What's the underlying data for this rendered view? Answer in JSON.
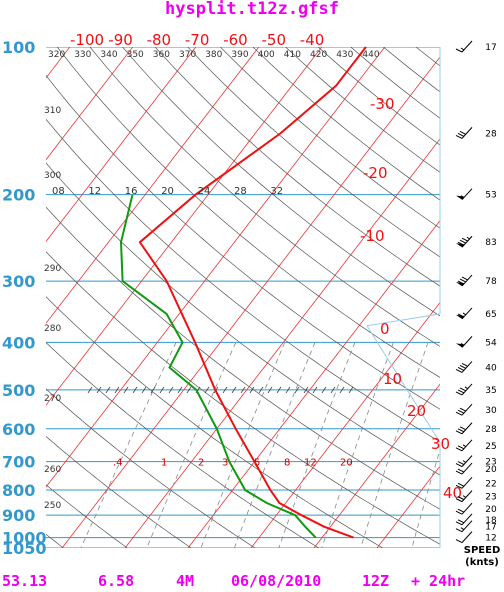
{
  "title": "hysplit.t12z.gfsf",
  "footer": {
    "lat": "53.13",
    "lon": "6.58",
    "model": "4M",
    "date": "06/08/2010",
    "cycle": "12Z",
    "forecast": "+ 24hr"
  },
  "colors": {
    "temperature": "#ee1111",
    "dewpoint": "#119911",
    "isobar": "#3399cc",
    "title": "#ee00ee",
    "isotherm": "#ee3333",
    "dry_adiabat": "#555555",
    "mixing_ratio": "#888888"
  },
  "chart_data": {
    "type": "skew-t",
    "pressure_levels": [
      100,
      200,
      300,
      400,
      500,
      600,
      700,
      800,
      900,
      1000,
      1050
    ],
    "top_temperature_labels": [
      -100,
      -90,
      -80,
      -70,
      -60,
      -50,
      -40
    ],
    "right_temperature_labels": [
      -30,
      -20,
      -10,
      0,
      10,
      20,
      30,
      40
    ],
    "theta_labels": [
      250,
      260,
      270,
      280,
      290,
      300,
      310,
      320,
      330,
      340,
      350,
      360,
      370,
      380,
      390,
      400,
      410,
      420,
      430,
      440
    ],
    "ws_labels_200hPa": [
      "08",
      "12",
      "16",
      "20",
      "24",
      "28",
      "32"
    ],
    "mixing_ratio_labels_700hPa": [
      ".4",
      "1",
      "2",
      "3",
      "5",
      "8",
      "12",
      "20"
    ],
    "temperature_profile": {
      "pressure": [
        1000,
        950,
        900,
        850,
        800,
        700,
        600,
        500,
        400,
        300,
        250,
        200,
        150,
        120,
        100
      ],
      "value_C": [
        15.0,
        9.0,
        4.0,
        -1.0,
        -4.0,
        -10.0,
        -17.0,
        -25.0,
        -34.0,
        -46.0,
        -55.0,
        -52.0,
        -46.0,
        -43.0,
        -43.0
      ]
    },
    "dewpoint_profile": {
      "pressure": [
        1000,
        950,
        900,
        850,
        800,
        700,
        600,
        500,
        450,
        400,
        350,
        300,
        250,
        200
      ],
      "value_C": [
        9.0,
        6.0,
        3.0,
        -3.0,
        -8.0,
        -14.0,
        -20.0,
        -28.0,
        -35.0,
        -36.0,
        -42.0,
        -53.0,
        -58.0,
        -62.0
      ]
    },
    "wind_speeds_knots": [
      {
        "pressure": 100,
        "speed": 17
      },
      {
        "pressure": 150,
        "speed": 28
      },
      {
        "pressure": 200,
        "speed": 53
      },
      {
        "pressure": 250,
        "speed": 83
      },
      {
        "pressure": 300,
        "speed": 78
      },
      {
        "pressure": 350,
        "speed": 65
      },
      {
        "pressure": 400,
        "speed": 54
      },
      {
        "pressure": 450,
        "speed": 40
      },
      {
        "pressure": 500,
        "speed": 35
      },
      {
        "pressure": 550,
        "speed": 30
      },
      {
        "pressure": 600,
        "speed": 28
      },
      {
        "pressure": 650,
        "speed": 25
      },
      {
        "pressure": 700,
        "speed": 23
      },
      {
        "pressure": 725,
        "speed": 20
      },
      {
        "pressure": 775,
        "speed": 22
      },
      {
        "pressure": 825,
        "speed": 23
      },
      {
        "pressure": 875,
        "speed": 20
      },
      {
        "pressure": 920,
        "speed": 18
      },
      {
        "pressure": 950,
        "speed": 17
      },
      {
        "pressure": 1000,
        "speed": 12
      }
    ],
    "speed_label": "SPEED",
    "speed_unit": "(knts)"
  }
}
